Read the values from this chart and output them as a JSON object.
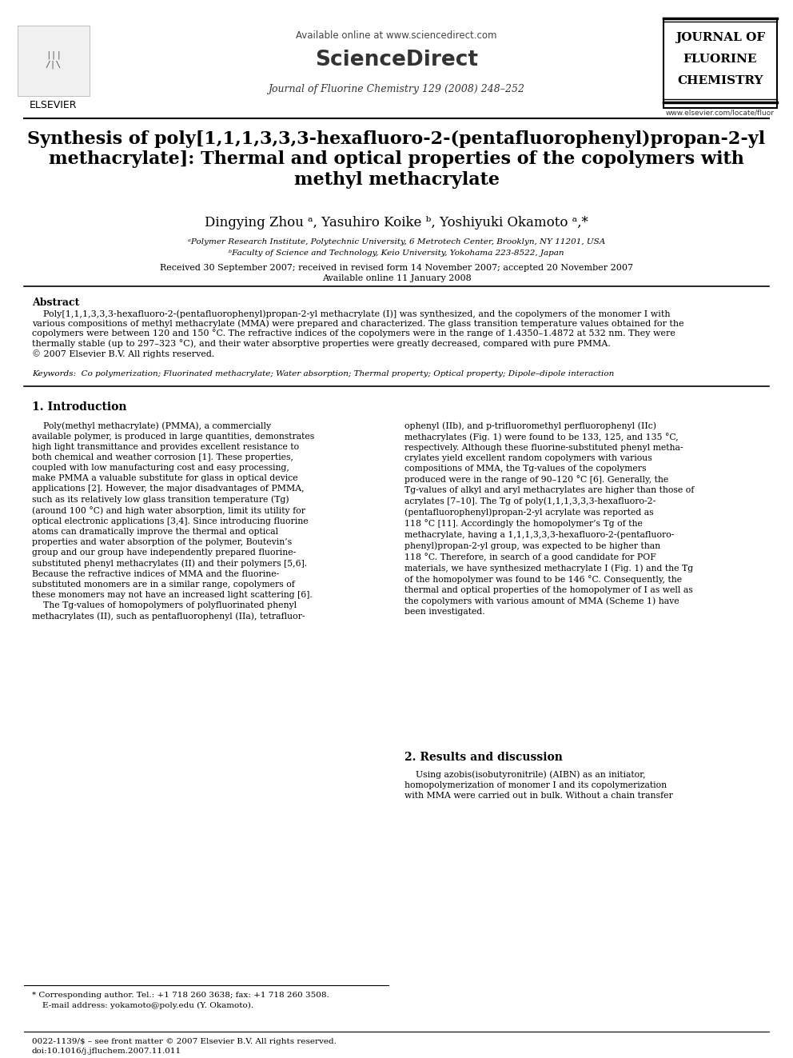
{
  "bg_color": "#ffffff",
  "header": {
    "available_online": "Available online at www.sciencedirect.com",
    "journal_name": "Journal of Fluorine Chemistry 129 (2008) 248–252",
    "elsevier_text": "ELSEVIER",
    "website": "www.elsevier.com/locate/fluor",
    "journal_logo_lines": [
      "JOURNAL OF",
      "FLUORINE",
      "CHEMISTRY"
    ]
  },
  "title": "Synthesis of poly[1,1,1,3,3,3-hexafluoro-2-(pentafluorophenyl)propan-2-yl\nmethacrylate]: Thermal and optical properties of the copolymers with\nmethyl methacrylate",
  "authors": "Dingying Zhou ᵃ, Yasuhiro Koike ᵇ, Yoshiyuki Okamoto ᵃ,*",
  "affiliation_a": "ᵃPolymer Research Institute, Polytechnic University, 6 Metrotech Center, Brooklyn, NY 11201, USA",
  "affiliation_b": "ᵇFaculty of Science and Technology, Keio University, Yokohama 223-8522, Japan",
  "received": "Received 30 September 2007; received in revised form 14 November 2007; accepted 20 November 2007",
  "available": "Available online 11 January 2008",
  "abstract_title": "Abstract",
  "abstract_text": "    Poly[1,1,1,3,3,3-hexafluoro-2-(pentafluorophenyl)propan-2-yl methacrylate (I)] was synthesized, and the copolymers of the monomer I with\nvarious compositions of methyl methacrylate (MMA) were prepared and characterized. The glass transition temperature values obtained for the\ncopolymers were between 120 and 150 °C. The refractive indices of the copolymers were in the range of 1.4350–1.4872 at 532 nm. They were\nthermally stable (up to 297–323 °C), and their water absorptive properties were greatly decreased, compared with pure PMMA.\n© 2007 Elsevier B.V. All rights reserved.",
  "keywords": "Keywords:  Co polymerization; Fluorinated methacrylate; Water absorption; Thermal property; Optical property; Dipole–dipole interaction",
  "section1_title": "1. Introduction",
  "section1_col1": "    Poly(methyl methacrylate) (PMMA), a commercially\navailable polymer, is produced in large quantities, demonstrates\nhigh light transmittance and provides excellent resistance to\nboth chemical and weather corrosion [1]. These properties,\ncoupled with low manufacturing cost and easy processing,\nmake PMMA a valuable substitute for glass in optical device\napplications [2]. However, the major disadvantages of PMMA,\nsuch as its relatively low glass transition temperature (Tg)\n(around 100 °C) and high water absorption, limit its utility for\noptical electronic applications [3,4]. Since introducing fluorine\natoms can dramatically improve the thermal and optical\nproperties and water absorption of the polymer, Boutevin’s\ngroup and our group have independently prepared fluorine-\nsubstituted phenyl methacrylates (II) and their polymers [5,6].\nBecause the refractive indices of MMA and the fluorine-\nsubstituted monomers are in a similar range, copolymers of\nthese monomers may not have an increased light scattering [6].\n    The Tg-values of homopolymers of polyfluorinated phenyl\nmethacrylates (II), such as pentafluorophenyl (IIa), tetrafluor-",
  "section1_col2": "ophenyl (IIb), and p-trifluoromethyl perfluorophenyl (IIc)\nmethacrylates (Fig. 1) were found to be 133, 125, and 135 °C,\nrespectively. Although these fluorine-substituted phenyl metha-\ncrylates yield excellent random copolymers with various\ncompositions of MMA, the Tg-values of the copolymers\nproduced were in the range of 90–120 °C [6]. Generally, the\nTg-values of alkyl and aryl methacrylates are higher than those of\nacrylates [7–10]. The Tg of poly(1,1,1,3,3,3-hexafluoro-2-\n(pentafluorophenyl)propan-2-yl acrylate was reported as\n118 °C [11]. Accordingly the homopolymer’s Tg of the\nmethacrylate, having a 1,1,1,3,3,3-hexafluoro-2-(pentafluoro-\nphenyl)propan-2-yl group, was expected to be higher than\n118 °C. Therefore, in search of a good candidate for POF\nmaterials, we have synthesized methacrylate I (Fig. 1) and the Tg\nof the homopolymer was found to be 146 °C. Consequently, the\nthermal and optical properties of the homopolymer of I as well as\nthe copolymers with various amount of MMA (Scheme 1) have\nbeen investigated.",
  "section2_title": "2. Results and discussion",
  "section2_col2_start": "    Using azobis(isobutyronitrile) (AIBN) as an initiator,\nhomopolymerization of monomer I and its copolymerization\nwith MMA were carried out in bulk. Without a chain transfer",
  "footnote_star": "* Corresponding author. Tel.: +1 718 260 3638; fax: +1 718 260 3508.",
  "footnote_email": "    E-mail address: yokamoto@poly.edu (Y. Okamoto).",
  "footer_issn": "0022-1139/$ – see front matter © 2007 Elsevier B.V. All rights reserved.",
  "footer_doi": "doi:10.1016/j.jfluchem.2007.11.011"
}
